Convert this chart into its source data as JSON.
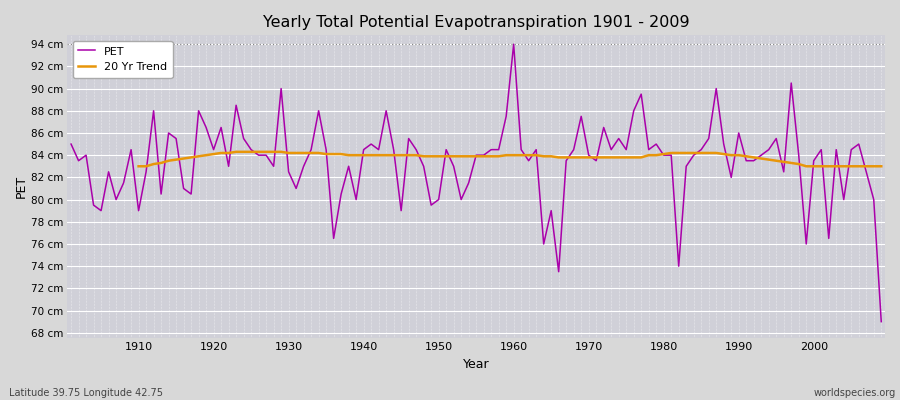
{
  "title": "Yearly Total Potential Evapotranspiration 1901 - 2009",
  "xlabel": "Year",
  "ylabel": "PET",
  "bottom_left": "Latitude 39.75 Longitude 42.75",
  "bottom_right": "worldspecies.org",
  "ylim": [
    67.5,
    94.8
  ],
  "yticks": [
    68,
    70,
    72,
    74,
    76,
    78,
    80,
    82,
    84,
    86,
    88,
    90,
    92,
    94
  ],
  "ytick_labels": [
    "68 cm",
    "70 cm",
    "72 cm",
    "74 cm",
    "76 cm",
    "78 cm",
    "80 cm",
    "82 cm",
    "84 cm",
    "86 cm",
    "88 cm",
    "90 cm",
    "92 cm",
    "94 cm"
  ],
  "xlim": [
    1900.5,
    2009.5
  ],
  "xticks": [
    1910,
    1920,
    1930,
    1940,
    1950,
    1960,
    1970,
    1980,
    1990,
    2000
  ],
  "pet_color": "#aa00aa",
  "trend_color": "#e8960a",
  "bg_color": "#d8d8d8",
  "plot_bg_color": "#d0d0d8",
  "grid_color": "#ffffff",
  "dotted_line_y": 94,
  "pet_data": [
    85.0,
    83.5,
    84.0,
    79.5,
    79.0,
    82.5,
    80.0,
    81.5,
    84.5,
    79.0,
    82.5,
    88.0,
    80.5,
    86.0,
    85.5,
    81.0,
    80.5,
    88.0,
    86.5,
    84.5,
    86.5,
    83.0,
    88.5,
    85.5,
    84.5,
    84.0,
    84.0,
    83.0,
    90.0,
    82.5,
    81.0,
    83.0,
    84.5,
    88.0,
    84.5,
    76.5,
    80.5,
    83.0,
    80.0,
    84.5,
    85.0,
    84.5,
    88.0,
    84.5,
    79.0,
    85.5,
    84.5,
    83.0,
    79.5,
    80.0,
    84.5,
    83.0,
    80.0,
    81.5,
    84.0,
    84.0,
    84.5,
    84.5,
    87.5,
    94.0,
    84.5,
    83.5,
    84.5,
    76.0,
    79.0,
    73.5,
    83.5,
    84.5,
    87.5,
    84.0,
    83.5,
    86.5,
    84.5,
    85.5,
    84.5,
    88.0,
    89.5,
    84.5,
    85.0,
    84.0,
    84.0,
    74.0,
    83.0,
    84.0,
    84.5,
    85.5,
    90.0,
    85.0,
    82.0,
    86.0,
    83.5,
    83.5,
    84.0,
    84.5,
    85.5,
    82.5,
    90.5,
    84.0,
    76.0,
    83.5,
    84.5,
    76.5,
    84.5,
    80.0,
    84.5,
    85.0,
    82.5,
    80.0,
    69.0
  ],
  "trend_data": [
    null,
    null,
    null,
    null,
    null,
    null,
    null,
    null,
    null,
    83.0,
    83.0,
    83.2,
    83.3,
    83.5,
    83.6,
    83.7,
    83.8,
    83.9,
    84.0,
    84.1,
    84.2,
    84.2,
    84.3,
    84.3,
    84.3,
    84.3,
    84.3,
    84.3,
    84.3,
    84.2,
    84.2,
    84.2,
    84.2,
    84.2,
    84.1,
    84.1,
    84.1,
    84.0,
    84.0,
    84.0,
    84.0,
    84.0,
    84.0,
    84.0,
    84.0,
    84.0,
    84.0,
    83.9,
    83.9,
    83.9,
    83.9,
    83.9,
    83.9,
    83.9,
    83.9,
    83.9,
    83.9,
    83.9,
    84.0,
    84.0,
    84.0,
    84.0,
    84.0,
    83.9,
    83.9,
    83.8,
    83.8,
    83.8,
    83.8,
    83.8,
    83.8,
    83.8,
    83.8,
    83.8,
    83.8,
    83.8,
    83.8,
    84.0,
    84.0,
    84.1,
    84.2,
    84.2,
    84.2,
    84.2,
    84.2,
    84.2,
    84.2,
    84.1,
    84.0,
    84.0,
    83.9,
    83.8,
    83.7,
    83.6,
    83.5,
    83.4,
    83.3,
    83.2,
    83.0,
    83.0,
    83.0,
    83.0,
    83.0,
    83.0,
    83.0,
    83.0,
    83.0,
    83.0,
    83.0
  ]
}
